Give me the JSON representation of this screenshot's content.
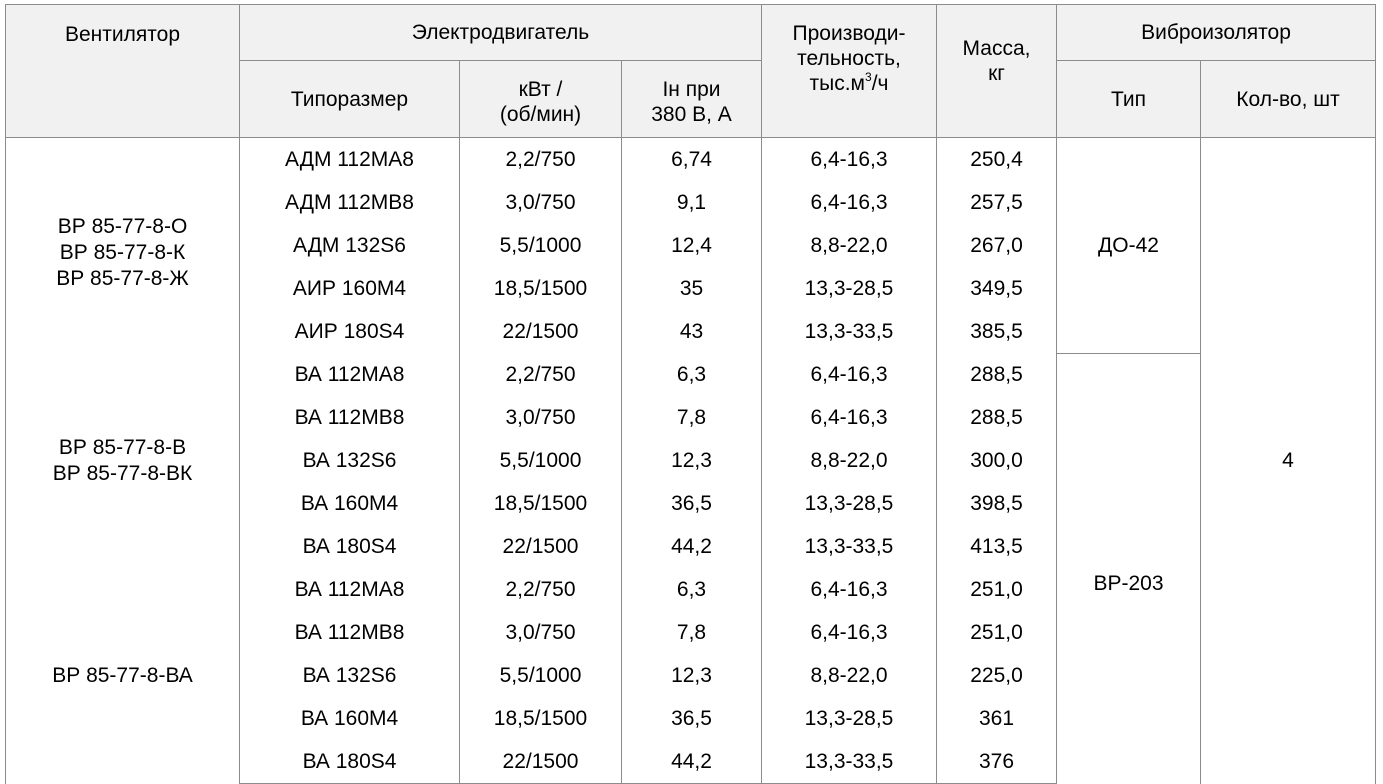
{
  "header": {
    "fan": "Вентилятор",
    "motor": "Электродвигатель",
    "motor_type": "Типоразмер",
    "power_line1": "кВт /",
    "power_line2": "(об/мин)",
    "current_line1": "Iн при",
    "current_line2": "380 В, А",
    "capacity_line1": "Производи-",
    "capacity_line2": "тельность,",
    "capacity_line3_pre": "тыс.м",
    "capacity_line3_sup": "3",
    "capacity_line3_post": "/ч",
    "mass_line1": "Масса,",
    "mass_line2": "кг",
    "isolator": "Виброизолятор",
    "isolator_type": "Тип",
    "isolator_qty": "Кол-во, шт"
  },
  "groups": [
    {
      "fans": [
        "ВР 85-77-8-О",
        "ВР 85-77-8-К",
        "ВР 85-77-8-Ж"
      ],
      "rows": [
        {
          "motor": "АДМ 112МА8",
          "power": "2,2/750",
          "current": "6,74",
          "capacity": "6,4-16,3",
          "mass": "250,4"
        },
        {
          "motor": "АДМ 112МВ8",
          "power": "3,0/750",
          "current": "9,1",
          "capacity": "6,4-16,3",
          "mass": "257,5"
        },
        {
          "motor": "АДМ 132S6",
          "power": "5,5/1000",
          "current": "12,4",
          "capacity": "8,8-22,0",
          "mass": "267,0"
        },
        {
          "motor": "АИР 160М4",
          "power": "18,5/1500",
          "current": "35",
          "capacity": "13,3-28,5",
          "mass": "349,5"
        },
        {
          "motor": "АИР 180S4",
          "power": "22/1500",
          "current": "43",
          "capacity": "13,3-33,5",
          "mass": "385,5"
        }
      ]
    },
    {
      "fans": [
        "ВР 85-77-8-В",
        "ВР 85-77-8-ВК"
      ],
      "rows": [
        {
          "motor": "ВА 112МА8",
          "power": "2,2/750",
          "current": "6,3",
          "capacity": "6,4-16,3",
          "mass": "288,5"
        },
        {
          "motor": "ВА 112МВ8",
          "power": "3,0/750",
          "current": "7,8",
          "capacity": "6,4-16,3",
          "mass": "288,5"
        },
        {
          "motor": "ВА 132S6",
          "power": "5,5/1000",
          "current": "12,3",
          "capacity": "8,8-22,0",
          "mass": "300,0"
        },
        {
          "motor": "ВА 160М4",
          "power": "18,5/1500",
          "current": "36,5",
          "capacity": "13,3-28,5",
          "mass": "398,5"
        },
        {
          "motor": "ВА 180S4",
          "power": "22/1500",
          "current": "44,2",
          "capacity": "13,3-33,5",
          "mass": "413,5"
        }
      ]
    },
    {
      "fans": [
        "ВР 85-77-8-ВА"
      ],
      "rows": [
        {
          "motor": "ВА 112МА8",
          "power": "2,2/750",
          "current": "6,3",
          "capacity": "6,4-16,3",
          "mass": "251,0"
        },
        {
          "motor": "ВА 112МВ8",
          "power": "3,0/750",
          "current": "7,8",
          "capacity": "6,4-16,3",
          "mass": "251,0"
        },
        {
          "motor": "ВА 132S6",
          "power": "5,5/1000",
          "current": "12,3",
          "capacity": "8,8-22,0",
          "mass": "225,0"
        },
        {
          "motor": "ВА 160М4",
          "power": "18,5/1500",
          "current": "36,5",
          "capacity": "13,3-28,5",
          "mass": "361"
        },
        {
          "motor": "ВА 180S4",
          "power": "22/1500",
          "current": "44,2",
          "capacity": "13,3-33,5",
          "mass": "376"
        }
      ]
    }
  ],
  "isolators": [
    {
      "type": "ДО-42"
    },
    {
      "type": "ВР-203"
    }
  ],
  "isolator_qty": "4"
}
